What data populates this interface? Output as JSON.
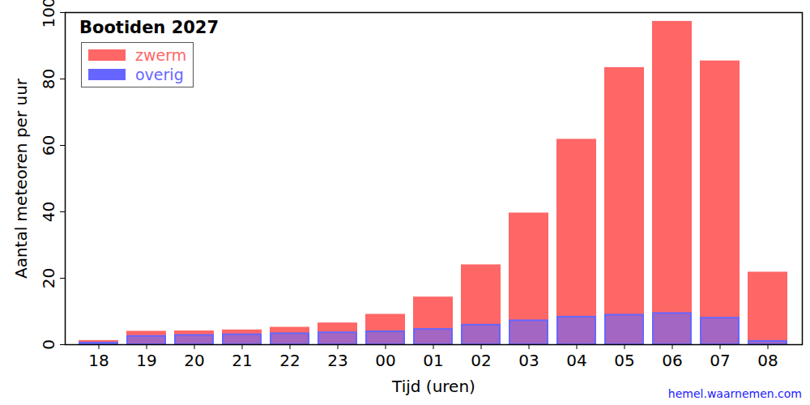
{
  "chart_data": {
    "type": "bar",
    "title": "Bootiden 2027",
    "x_label": "Tijd (uren)",
    "y_label": "Aantal meteoren per uur",
    "annotations": [
      "hemel.waarnemen.com"
    ],
    "stacked": true,
    "legend": "upper left",
    "categories": [
      "18",
      "19",
      "20",
      "21",
      "22",
      "23",
      "00",
      "01",
      "02",
      "03",
      "04",
      "05",
      "06",
      "07",
      "08"
    ],
    "series": [
      {
        "name": "zwerm",
        "color": "#ff6666",
        "values": [
          0.5,
          1.3,
          1.1,
          1.2,
          1.7,
          2.7,
          5.0,
          9.5,
          17.9,
          32.2,
          53.3,
          74.3,
          87.7,
          77.2,
          20.6
        ]
      },
      {
        "name": "overig",
        "color": "#6666ff",
        "values": [
          0.5,
          2.5,
          2.8,
          3.0,
          3.3,
          3.6,
          3.9,
          4.6,
          5.9,
          7.2,
          8.3,
          8.9,
          9.4,
          8.0,
          1.0
        ]
      }
    ],
    "ylim": [
      0,
      100
    ],
    "yticks": [
      0,
      20,
      40,
      60,
      80,
      100
    ],
    "grid": false
  }
}
